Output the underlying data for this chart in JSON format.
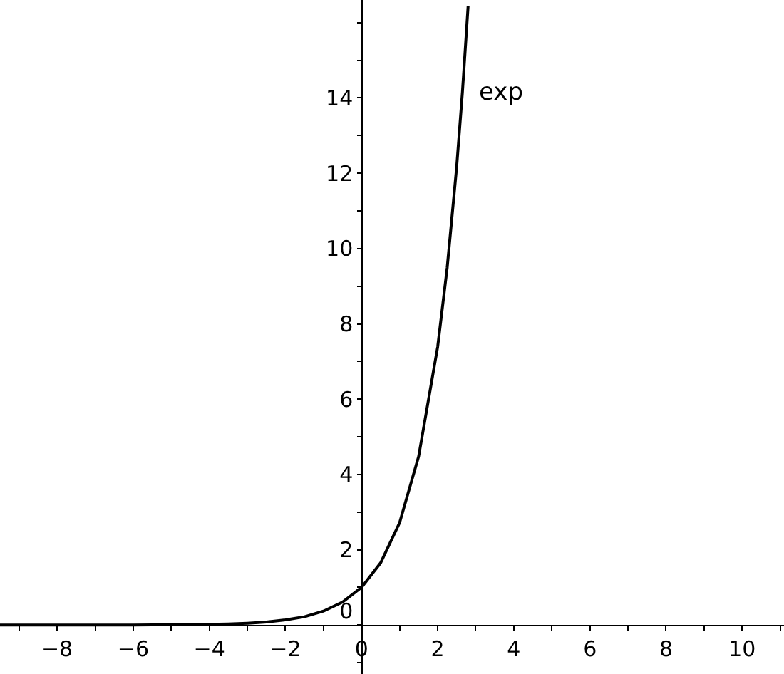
{
  "chart_data": {
    "type": "line",
    "x": [
      -9.5,
      -8,
      -7,
      -6,
      -5,
      -4,
      -3.5,
      -3,
      -2.5,
      -2,
      -1.5,
      -1,
      -0.5,
      0,
      0.5,
      1,
      1.5,
      2,
      2.25,
      2.5,
      2.65,
      2.8
    ],
    "series": [
      {
        "name": "exp",
        "color": "#000000",
        "values": [
          0.0,
          0.0,
          0.0,
          0.0,
          0.01,
          0.02,
          0.03,
          0.05,
          0.08,
          0.14,
          0.22,
          0.37,
          0.61,
          1.0,
          1.65,
          2.72,
          4.48,
          7.39,
          9.49,
          12.18,
          14.15,
          16.44
        ]
      }
    ],
    "xlim": [
      -9.5,
      11.1
    ],
    "ylim": [
      -1.3,
      16.6
    ],
    "xticks": [
      {
        "value": -9,
        "label": null
      },
      {
        "value": -8,
        "label": "−8"
      },
      {
        "value": -7,
        "label": null
      },
      {
        "value": -6,
        "label": "−6"
      },
      {
        "value": -5,
        "label": null
      },
      {
        "value": -4,
        "label": "−4"
      },
      {
        "value": -3,
        "label": null
      },
      {
        "value": -2,
        "label": "−2"
      },
      {
        "value": -1,
        "label": null
      },
      0,
      {
        "value": 1,
        "label": null
      },
      2,
      {
        "value": 3,
        "label": null
      },
      4,
      {
        "value": 5,
        "label": null
      },
      6,
      {
        "value": 7,
        "label": null
      },
      8,
      {
        "value": 9,
        "label": null
      },
      10,
      {
        "value": 11,
        "label": null
      }
    ],
    "yticks": [
      {
        "value": -1,
        "label": null
      },
      0,
      {
        "value": 1,
        "label": null
      },
      2,
      {
        "value": 3,
        "label": null
      },
      4,
      {
        "value": 5,
        "label": null
      },
      6,
      {
        "value": 7,
        "label": null
      },
      8,
      {
        "value": 9,
        "label": null
      },
      10,
      {
        "value": 11,
        "label": null
      },
      12,
      {
        "value": 13,
        "label": null
      },
      14,
      {
        "value": 15,
        "label": null
      },
      {
        "value": 16,
        "label": null
      }
    ],
    "legend": false,
    "marker": "none",
    "line_style": "solid"
  }
}
